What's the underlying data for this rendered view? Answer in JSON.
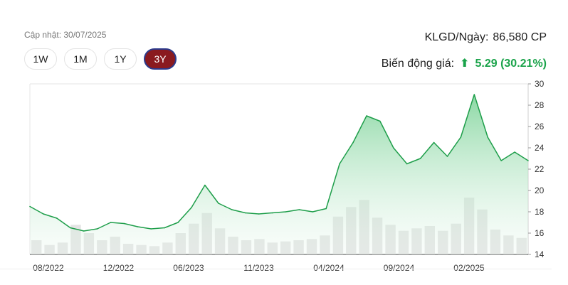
{
  "header": {
    "updated": "Cập nhật: 30/07/2025",
    "ranges": [
      "1W",
      "1M",
      "1Y",
      "3Y"
    ],
    "active_range": "3Y",
    "volume_label": "KLGD/Ngày:",
    "volume_value": "86,580 CP",
    "change_label": "Biến động giá:",
    "change_value": "5.29 (30.21%)"
  },
  "colors": {
    "line": "#1e9e4a",
    "area_top": "#7fd49a",
    "volume": "#d9d9d9",
    "active_button": "#8a1a1f",
    "positive": "#1aa34a"
  },
  "chart_data": {
    "type": "area",
    "x_tick_labels": [
      "08/2022",
      "12/2022",
      "06/2023",
      "11/2023",
      "04/2024",
      "09/2024",
      "02/2025"
    ],
    "y_ticks": [
      14,
      16,
      18,
      20,
      22,
      24,
      26,
      28,
      30
    ],
    "ylim": [
      14,
      30
    ],
    "grid": false,
    "x": [
      "06/2022",
      "07/2022",
      "08/2022",
      "09/2022",
      "10/2022",
      "11/2022",
      "12/2022",
      "01/2023",
      "02/2023",
      "03/2023",
      "04/2023",
      "05/2023",
      "06/2023",
      "07/2023",
      "08/2023",
      "09/2023",
      "10/2023",
      "11/2023",
      "12/2023",
      "01/2024",
      "02/2024",
      "03/2024",
      "04/2024",
      "05/2024",
      "06/2024",
      "07/2024",
      "08/2024",
      "09/2024",
      "10/2024",
      "11/2024",
      "12/2024",
      "01/2025",
      "02/2025",
      "03/2025",
      "04/2025",
      "05/2025",
      "06/2025",
      "07/2025"
    ],
    "series": [
      {
        "values": [
          18.5,
          17.8,
          17.4,
          16.5,
          16.2,
          16.4,
          17.0,
          16.9,
          16.6,
          16.4,
          16.5,
          17.0,
          18.4,
          20.5,
          18.8,
          18.2,
          17.9,
          17.8,
          17.9,
          18.0,
          18.2,
          18.0,
          18.3,
          22.5,
          24.5,
          27.0,
          26.5,
          24.0,
          22.5,
          23.0,
          24.5,
          23.2,
          25.0,
          29.0,
          25.0,
          22.8,
          23.6,
          22.8
        ]
      }
    ],
    "volume_values": [
      1.2,
      0.8,
      1.0,
      2.5,
      1.8,
      1.2,
      1.5,
      0.9,
      0.8,
      0.7,
      1.0,
      1.8,
      2.6,
      3.5,
      2.2,
      1.5,
      1.2,
      1.3,
      1.0,
      1.1,
      1.2,
      1.3,
      1.6,
      3.2,
      4.0,
      4.6,
      3.1,
      2.5,
      2.0,
      2.2,
      2.4,
      2.0,
      2.6,
      4.8,
      3.8,
      2.1,
      1.6,
      1.4
    ]
  }
}
